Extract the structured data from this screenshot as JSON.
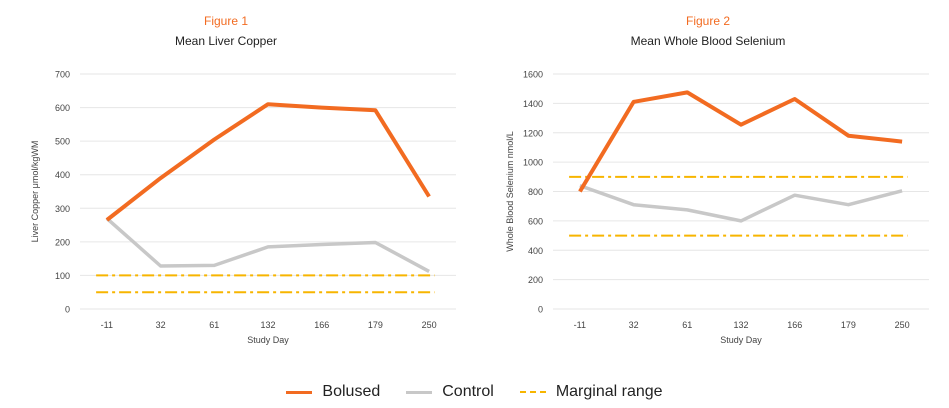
{
  "colors": {
    "bolused": "#F26B21",
    "control": "#C8C8C8",
    "marginal": "#F7B500",
    "figure_label": "#F26B21",
    "grid": "#E6E6E6",
    "text": "#222222"
  },
  "legend": {
    "items": [
      {
        "label": "Bolused",
        "style": "solid",
        "color": "#F26B21"
      },
      {
        "label": "Control",
        "style": "solid",
        "color": "#C8C8C8"
      },
      {
        "label": "Marginal range",
        "style": "dashdot",
        "color": "#F7B500"
      }
    ]
  },
  "chart_data": [
    {
      "type": "line",
      "figure_label": "Figure 1",
      "title": "Mean Liver Copper",
      "xlabel": "Study Day",
      "ylabel": "Liver Copper μmol/kgWM",
      "categories": [
        "-11",
        "32",
        "61",
        "132",
        "166",
        "179",
        "250"
      ],
      "ylim": [
        0,
        700
      ],
      "yticks": [
        0,
        100,
        200,
        300,
        400,
        500,
        600,
        700
      ],
      "grid": true,
      "series": [
        {
          "name": "Bolused",
          "values": [
            265,
            390,
            505,
            610,
            600,
            592,
            335
          ],
          "color": "#F26B21"
        },
        {
          "name": "Control",
          "values": [
            270,
            128,
            130,
            185,
            192,
            198,
            112
          ],
          "color": "#C8C8C8"
        }
      ],
      "reference_lines": [
        100,
        50
      ]
    },
    {
      "type": "line",
      "figure_label": "Figure 2",
      "title": "Mean Whole Blood Selenium",
      "xlabel": "Study Day",
      "ylabel": "Whole Blood Selenium nmol/L",
      "categories": [
        "-11",
        "32",
        "61",
        "132",
        "166",
        "179",
        "250"
      ],
      "ylim": [
        0,
        1600
      ],
      "yticks": [
        0,
        200,
        400,
        600,
        800,
        1000,
        1200,
        1400,
        1600
      ],
      "grid": true,
      "series": [
        {
          "name": "Bolused",
          "values": [
            800,
            1410,
            1475,
            1255,
            1430,
            1180,
            1140
          ],
          "color": "#F26B21"
        },
        {
          "name": "Control",
          "values": [
            840,
            710,
            675,
            600,
            775,
            710,
            805
          ],
          "color": "#C8C8C8"
        }
      ],
      "reference_lines": [
        900,
        500
      ]
    }
  ]
}
